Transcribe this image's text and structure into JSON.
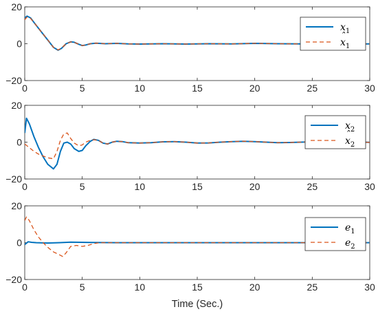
{
  "colors": {
    "solid": "#0072BD",
    "dashed": "#D95319",
    "axis": "#262626",
    "legend_border": "#262626"
  },
  "xlabel_text": "Time (Sec.)",
  "chart_data": [
    {
      "type": "line",
      "xlim": [
        0,
        30
      ],
      "ylim": [
        -20,
        20
      ],
      "xticks": [
        0,
        5,
        10,
        15,
        20,
        25,
        30
      ],
      "yticks": [
        -20,
        0,
        20
      ],
      "xlabel": "",
      "ylabel": "",
      "title": "",
      "grid": false,
      "legend_position": "top-right",
      "series": [
        {
          "name": "x1",
          "display": "x",
          "sub": "1",
          "hat": false,
          "style": "solid",
          "x": [
            0,
            0.2,
            0.5,
            1,
            1.5,
            2,
            2.5,
            2.9,
            3.2,
            3.6,
            4,
            4.3,
            4.7,
            5,
            5.3,
            5.7,
            6.2,
            7,
            8,
            9,
            10,
            12,
            14,
            16,
            18,
            20,
            22,
            24,
            26,
            28,
            30
          ],
          "y": [
            14,
            15,
            14,
            10,
            6,
            2,
            -2,
            -3.5,
            -2.5,
            0,
            1,
            0.8,
            -0.3,
            -1,
            -0.7,
            0,
            0.3,
            0,
            0.2,
            -0.1,
            -0.2,
            0,
            -0.2,
            0,
            -0.1,
            0.2,
            0,
            -0.1,
            0.1,
            -0.2,
            -0.1
          ]
        },
        {
          "name": "x1 hat",
          "display": "x",
          "sub": "1",
          "hat": true,
          "style": "dashed",
          "x": [
            0,
            0.2,
            0.5,
            1,
            1.5,
            2,
            2.5,
            2.9,
            3.2,
            3.6,
            4,
            4.3,
            4.7,
            5,
            5.3,
            5.7,
            6.2,
            7,
            8,
            9,
            10,
            12,
            14,
            16,
            18,
            20,
            22,
            24,
            26,
            28,
            30
          ],
          "y": [
            13,
            14.5,
            13.8,
            10,
            6,
            2,
            -2,
            -3.4,
            -2.4,
            0,
            1,
            0.8,
            -0.3,
            -1,
            -0.7,
            0,
            0.3,
            0,
            0.2,
            -0.1,
            -0.2,
            0,
            -0.2,
            0,
            -0.1,
            0.2,
            0,
            -0.1,
            0.1,
            -0.2,
            -0.1
          ]
        }
      ]
    },
    {
      "type": "line",
      "xlim": [
        0,
        30
      ],
      "ylim": [
        -20,
        20
      ],
      "xticks": [
        0,
        5,
        10,
        15,
        20,
        25,
        30
      ],
      "yticks": [
        -20,
        0,
        20
      ],
      "xlabel": "",
      "ylabel": "",
      "title": "",
      "grid": false,
      "legend_position": "top-right",
      "series": [
        {
          "name": "x2",
          "display": "x",
          "sub": "2",
          "hat": false,
          "style": "solid",
          "x": [
            0,
            0.15,
            0.4,
            0.8,
            1.2,
            1.6,
            2,
            2.5,
            2.8,
            3.1,
            3.4,
            3.7,
            4,
            4.3,
            4.7,
            5,
            5.3,
            5.7,
            6,
            6.4,
            6.8,
            7.2,
            7.6,
            8,
            8.5,
            9,
            10,
            11,
            12,
            13,
            14,
            15,
            16,
            17,
            18,
            19,
            20,
            21,
            22,
            23,
            24,
            25,
            26,
            27,
            28,
            29,
            30
          ],
          "y": [
            5,
            13,
            10,
            3,
            -3,
            -8,
            -12,
            -14.5,
            -12,
            -5,
            -0.5,
            0,
            -1,
            -3.5,
            -5,
            -4.5,
            -2,
            0.5,
            1.5,
            1,
            -0.5,
            -1,
            0,
            0.5,
            0.3,
            -0.3,
            -0.5,
            -0.3,
            0.2,
            0.3,
            0,
            -0.5,
            -0.4,
            0,
            0.3,
            0.5,
            0.3,
            0,
            -0.3,
            -0.2,
            0,
            0.2,
            0,
            -0.2,
            0,
            0.1,
            -0.1
          ]
        },
        {
          "name": "x2 hat",
          "display": "x",
          "sub": "2",
          "hat": true,
          "style": "dashed",
          "x": [
            0,
            0.4,
            0.8,
            1.2,
            1.6,
            2,
            2.5,
            2.8,
            3.1,
            3.4,
            3.7,
            4,
            4.3,
            4.7,
            5,
            5.3,
            5.7,
            6,
            6.4,
            6.8,
            7.2,
            7.6,
            8,
            8.5,
            9,
            10,
            11,
            12,
            13,
            14,
            15,
            16,
            17,
            18,
            19,
            20,
            21,
            22,
            23,
            24,
            25,
            26,
            27,
            28,
            29,
            30
          ],
          "y": [
            -1,
            -3,
            -5,
            -6.5,
            -7.5,
            -8.5,
            -9,
            -5,
            1,
            4.5,
            5,
            2,
            -0.5,
            -2,
            -1.5,
            0,
            1,
            1.3,
            1,
            -0.5,
            -1,
            0,
            0.5,
            0.3,
            -0.3,
            -0.5,
            -0.3,
            0.2,
            0.3,
            0,
            -0.5,
            -0.4,
            0,
            0.3,
            0.5,
            0.3,
            0,
            -0.3,
            -0.2,
            0,
            0.2,
            0,
            -0.2,
            0,
            0.1,
            -0.1
          ]
        }
      ]
    },
    {
      "type": "line",
      "xlim": [
        0,
        30
      ],
      "ylim": [
        -20,
        20
      ],
      "xticks": [
        0,
        5,
        10,
        15,
        20,
        25,
        30
      ],
      "yticks": [
        -20,
        0,
        20
      ],
      "xlabel": "Time (Sec.)",
      "ylabel": "",
      "title": "",
      "grid": false,
      "legend_position": "top-right",
      "series": [
        {
          "name": "e1",
          "display": "e",
          "sub": "1",
          "hat": false,
          "style": "solid",
          "x": [
            0,
            0.1,
            0.3,
            0.6,
            1,
            2,
            3,
            4,
            5,
            6,
            8,
            10,
            15,
            20,
            25,
            30
          ],
          "y": [
            -1,
            -0.5,
            0.5,
            0.2,
            0,
            -0.2,
            0,
            0.3,
            0.2,
            0.1,
            0,
            0,
            0,
            0,
            0,
            0
          ]
        },
        {
          "name": "e2",
          "display": "e",
          "sub": "2",
          "hat": false,
          "style": "dashed",
          "x": [
            0,
            0.15,
            0.4,
            0.8,
            1.2,
            1.6,
            2,
            2.5,
            3,
            3.3,
            3.6,
            4,
            4.5,
            5,
            5.5,
            6,
            6.5,
            7,
            8,
            10,
            15,
            20,
            25,
            30
          ],
          "y": [
            12,
            14,
            12,
            7,
            3,
            0,
            -2.5,
            -5,
            -6.5,
            -7.5,
            -5.5,
            -2,
            -1.5,
            -2,
            -1.5,
            -0.5,
            0,
            0,
            0,
            0,
            0,
            0,
            0,
            0
          ]
        }
      ]
    }
  ]
}
